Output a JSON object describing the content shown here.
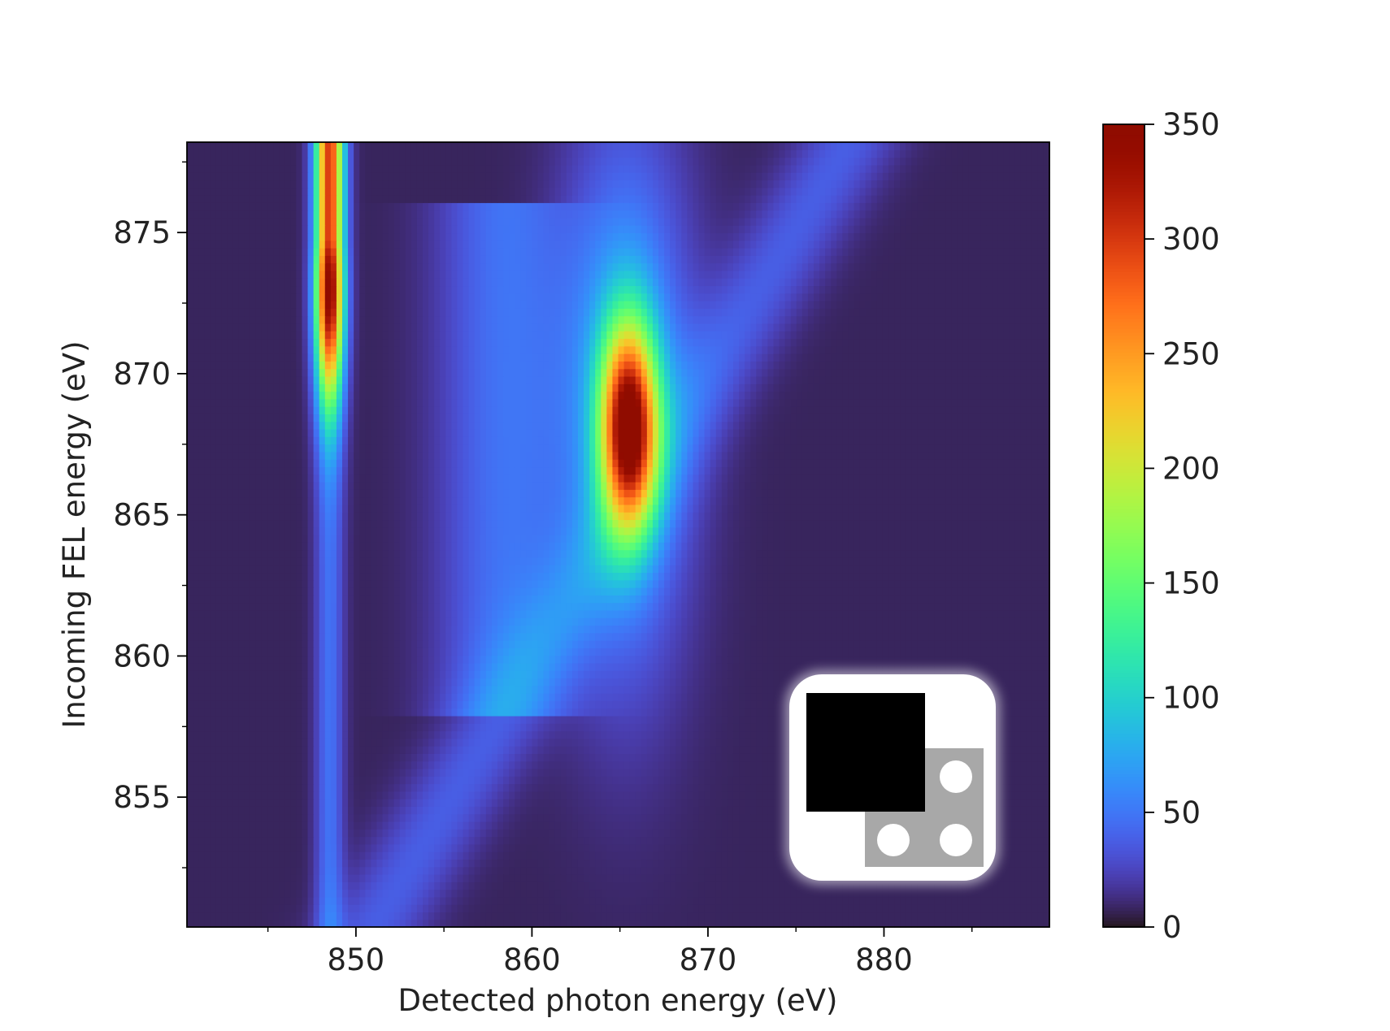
{
  "chart_data": {
    "type": "heatmap",
    "title": "",
    "xlabel": "Detected photon energy (eV)",
    "ylabel": "Incoming FEL energy (eV)",
    "xlim": [
      840.4,
      889.4
    ],
    "ylim": [
      850.4,
      878.2
    ],
    "x_ticks": [
      850,
      860,
      870,
      880
    ],
    "y_ticks": [
      855,
      860,
      865,
      870,
      875
    ],
    "x_minor_step": 5,
    "y_minor_step": 2.5,
    "colorbar": {
      "colormap": "turbo",
      "vmin": 0,
      "vmax": 350,
      "ticks": [
        0,
        50,
        100,
        150,
        200,
        250,
        300,
        350
      ]
    },
    "background_intensity": 8,
    "features": [
      {
        "label": "elastic line",
        "x_center": 848.5,
        "x_width": 0.55,
        "y_from": 850.4,
        "y_to": 878.2,
        "peak_intensity": 345,
        "peak_y": 873.0,
        "y_width": 2.8,
        "base_intensity": 40
      },
      {
        "label": "resonant peak",
        "x_center": 865.5,
        "y_center": 868.2,
        "x_width": 1.1,
        "y_width": 2.5,
        "peak_intensity": 300
      },
      {
        "label": "fluorescence halo",
        "x_center": 865.3,
        "y_center": 869.0,
        "x_width": 2.5,
        "y_width": 6.5,
        "peak_intensity": 70
      },
      {
        "label": "diagonal streak",
        "x_from": 851.0,
        "y_from": 850.4,
        "x_to": 878.0,
        "y_to": 878.2,
        "width": 2.0,
        "peak_intensity": 30
      },
      {
        "label": "vertical band",
        "x_center": 858.5,
        "x_width": 2.6,
        "y_from": 858.0,
        "y_to": 876.0,
        "peak_intensity": 40
      }
    ]
  },
  "overlay_icon": {
    "name": "inset-badge",
    "colors": {
      "card": "#ffffff",
      "dark_square": "#000000",
      "grey_square": "#a8a8a8",
      "dots": "#ffffff"
    }
  }
}
